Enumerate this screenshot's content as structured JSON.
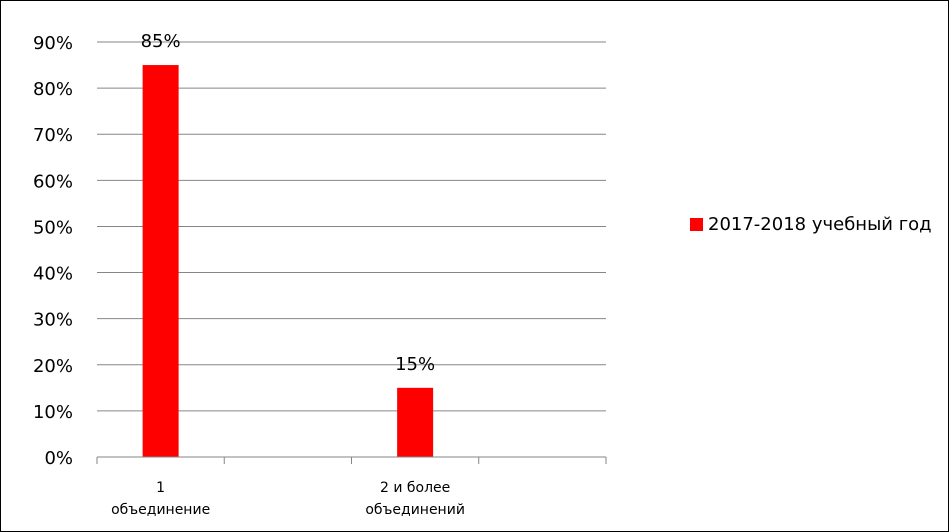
{
  "chart_data": {
    "type": "bar",
    "categories": [
      [
        "1",
        "объединение"
      ],
      [
        "2 и более",
        "объединений"
      ]
    ],
    "series": [
      {
        "name": "2017-2018 учебный год",
        "values": [
          85,
          15
        ],
        "data_labels": [
          "85%",
          "15%"
        ],
        "color": "#ff0000"
      }
    ],
    "ylim": [
      0,
      90
    ],
    "yticks": [
      0,
      10,
      20,
      30,
      40,
      50,
      60,
      70,
      80,
      90
    ],
    "ytick_labels": [
      "0%",
      "10%",
      "20%",
      "30%",
      "40%",
      "50%",
      "60%",
      "70%",
      "80%",
      "90%"
    ],
    "grid": true,
    "legend": "right"
  }
}
